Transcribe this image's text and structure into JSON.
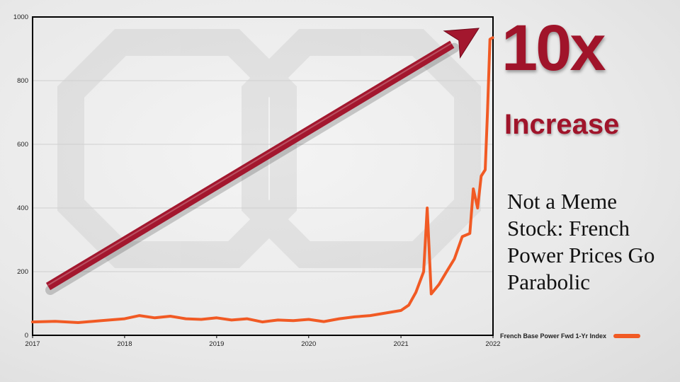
{
  "chart_data": {
    "type": "line",
    "title": "",
    "xlabel": "",
    "ylabel": "",
    "ylim": [
      0,
      1000
    ],
    "xlim": [
      "2017-01",
      "2022-01"
    ],
    "grid": "horizontal",
    "x_ticks": [
      "2017",
      "2018",
      "2019",
      "2020",
      "2021",
      "2022"
    ],
    "y_ticks": [
      0,
      200,
      400,
      600,
      800,
      1000
    ],
    "series": [
      {
        "name": "French Base Power Fwd 1-Yr Index",
        "color": "#f15a24",
        "x": [
          "2017-01",
          "2017-04",
          "2017-07",
          "2017-10",
          "2018-01",
          "2018-03",
          "2018-05",
          "2018-07",
          "2018-09",
          "2018-11",
          "2019-01",
          "2019-03",
          "2019-05",
          "2019-07",
          "2019-09",
          "2019-11",
          "2020-01",
          "2020-03",
          "2020-05",
          "2020-07",
          "2020-09",
          "2020-11",
          "2021-01",
          "2021-02",
          "2021-03",
          "2021-04",
          "2021-04-15",
          "2021-05",
          "2021-06",
          "2021-07",
          "2021-08",
          "2021-09",
          "2021-10",
          "2021-10-15",
          "2021-11",
          "2021-11-15",
          "2021-12",
          "2021-12-10",
          "2021-12-20",
          "2021-12-31"
        ],
        "values": [
          42,
          44,
          40,
          46,
          52,
          62,
          55,
          60,
          52,
          50,
          55,
          48,
          52,
          42,
          48,
          46,
          50,
          43,
          52,
          58,
          62,
          70,
          78,
          95,
          135,
          200,
          400,
          130,
          160,
          200,
          240,
          310,
          320,
          460,
          400,
          500,
          520,
          700,
          930,
          935
        ]
      }
    ],
    "legend": "bottom-right"
  },
  "annotations": {
    "arrow_color": "#a3172e",
    "big_multiplier": "10x",
    "big_sub": "Increase",
    "headline": "Not a Meme Stock: French Power Prices Go Parabolic"
  },
  "legend": {
    "label": "French Base Power Fwd 1-Yr Index"
  }
}
